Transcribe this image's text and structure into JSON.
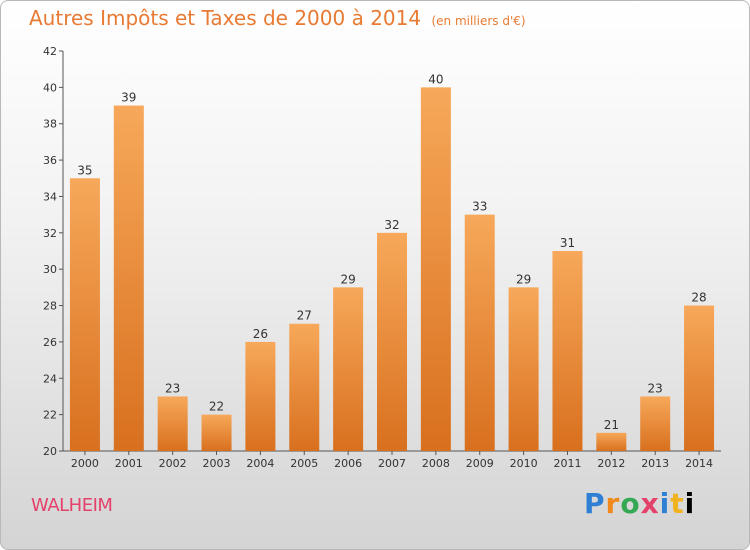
{
  "title": "Autres Impôts et Taxes de 2000 à 2014",
  "title_unit": "(en milliers d'€)",
  "location": "WALHEIM",
  "logo": [
    "P",
    "r",
    "o",
    "x",
    "i",
    "t",
    "i"
  ],
  "colors": {
    "bar_light": "#f7a85a",
    "bar_dark": "#d8701e",
    "title": "#e87b33",
    "location": "#e4426a"
  },
  "chart_data": {
    "type": "bar",
    "title": "Autres Impôts et Taxes de 2000 à 2014",
    "subtitle": "(en milliers d'€)",
    "categories": [
      "2000",
      "2001",
      "2002",
      "2003",
      "2004",
      "2005",
      "2006",
      "2007",
      "2008",
      "2009",
      "2010",
      "2011",
      "2012",
      "2013",
      "2014"
    ],
    "values": [
      35,
      39,
      23,
      22,
      26,
      27,
      29,
      32,
      40,
      33,
      29,
      31,
      21,
      23,
      28
    ],
    "ylim": [
      20,
      42
    ],
    "yticks": [
      20,
      22,
      24,
      26,
      28,
      30,
      32,
      34,
      36,
      38,
      40,
      42
    ],
    "grid": false,
    "data_labels": true
  }
}
